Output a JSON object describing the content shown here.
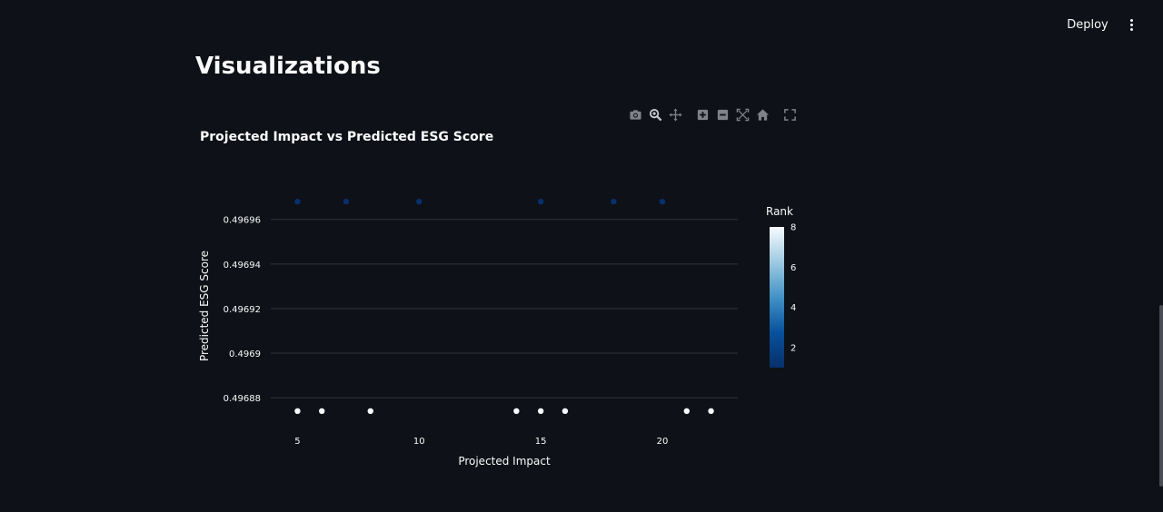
{
  "header": {
    "deploy_label": "Deploy",
    "more_icon": "more-vert-icon"
  },
  "page": {
    "title": "Visualizations"
  },
  "modebar": {
    "icons": [
      "camera-icon",
      "zoom-icon",
      "pan-icon",
      "zoom-in-icon",
      "zoom-out-icon",
      "autoscale-icon",
      "reset-axes-home-icon",
      "fullscreen-icon"
    ]
  },
  "colors": {
    "background": "#0e1117",
    "text": "#fafafa",
    "grid": "#31333f",
    "rank_low": "#08306b",
    "rank_high": "#f7fbff"
  },
  "chart_data": {
    "type": "scatter",
    "title": "Projected Impact vs Predicted ESG Score",
    "xlabel": "Projected Impact",
    "ylabel": "Predicted ESG Score",
    "xticks": [
      5,
      10,
      15,
      20
    ],
    "yticks": [
      0.49688,
      0.4969,
      0.49692,
      0.49694,
      0.49696
    ],
    "ytick_labels": [
      "0.49688",
      "0.4969",
      "0.49692",
      "0.49694",
      "0.49696"
    ],
    "xlim": [
      3.9,
      23.1
    ],
    "ylim": [
      0.496867,
      0.496977
    ],
    "colorbar": {
      "title": "Rank",
      "ticks": [
        2,
        4,
        6,
        8
      ],
      "range": [
        1,
        8
      ]
    },
    "points": [
      {
        "x": 5,
        "y": 0.496968,
        "rank": 1
      },
      {
        "x": 7,
        "y": 0.496968,
        "rank": 1
      },
      {
        "x": 10,
        "y": 0.496968,
        "rank": 1
      },
      {
        "x": 15,
        "y": 0.496968,
        "rank": 1
      },
      {
        "x": 18,
        "y": 0.496968,
        "rank": 1
      },
      {
        "x": 20,
        "y": 0.496968,
        "rank": 1
      },
      {
        "x": 5,
        "y": 0.496874,
        "rank": 8
      },
      {
        "x": 6,
        "y": 0.496874,
        "rank": 8
      },
      {
        "x": 8,
        "y": 0.496874,
        "rank": 8
      },
      {
        "x": 14,
        "y": 0.496874,
        "rank": 8
      },
      {
        "x": 15,
        "y": 0.496874,
        "rank": 8
      },
      {
        "x": 16,
        "y": 0.496874,
        "rank": 8
      },
      {
        "x": 21,
        "y": 0.496874,
        "rank": 8
      },
      {
        "x": 22,
        "y": 0.496874,
        "rank": 8
      }
    ]
  }
}
